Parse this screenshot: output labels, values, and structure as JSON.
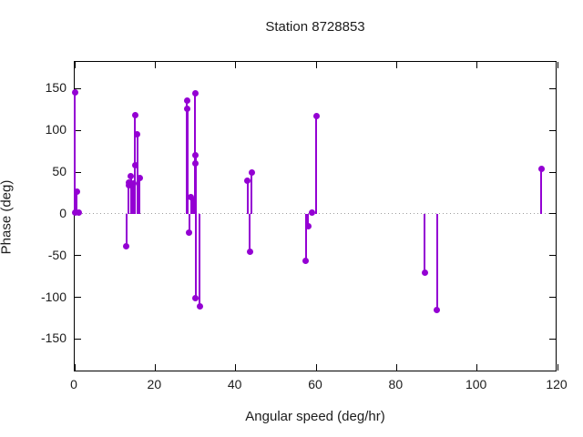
{
  "title": "Station 8728853",
  "axes": {
    "xlabel": "Angular speed (deg/hr)",
    "ylabel": "Phase (deg)",
    "x_ticks": [
      0,
      20,
      40,
      60,
      80,
      100,
      120
    ],
    "y_ticks": [
      150,
      100,
      50,
      0,
      -50,
      -100,
      -150
    ]
  },
  "colors": {
    "series": "#9400D3",
    "zero_line": "#9e9e9e",
    "axis": "#000000",
    "background": "#ffffff"
  },
  "chart_data": {
    "type": "scatter",
    "style": "impulses-with-points",
    "title": "Station 8728853",
    "xlabel": "Angular speed (deg/hr)",
    "ylabel": "Phase (deg)",
    "series_color": "#9400D3",
    "xlim": [
      0,
      120
    ],
    "ylim": [
      -190,
      182
    ],
    "x_ticks": [
      0,
      20,
      40,
      60,
      80,
      100,
      120
    ],
    "y_ticks": [
      150,
      100,
      50,
      0,
      -50,
      -100,
      -150
    ],
    "grid": "dotted-zero-line-only",
    "legend": "none",
    "points": [
      [
        0.04,
        146
      ],
      [
        0.08,
        1
      ],
      [
        0.54,
        27
      ],
      [
        1.02,
        1
      ],
      [
        12.85,
        -39
      ],
      [
        13.4,
        38
      ],
      [
        13.47,
        34
      ],
      [
        13.94,
        45
      ],
      [
        14.5,
        36
      ],
      [
        14.96,
        58
      ],
      [
        15.04,
        118
      ],
      [
        15.59,
        95
      ],
      [
        16.14,
        43
      ],
      [
        27.9,
        136
      ],
      [
        27.97,
        126
      ],
      [
        28.44,
        -22
      ],
      [
        28.98,
        20
      ],
      [
        29.46,
        16
      ],
      [
        29.53,
        12
      ],
      [
        29.96,
        144
      ],
      [
        30.0,
        70
      ],
      [
        30.04,
        60
      ],
      [
        30.08,
        -101
      ],
      [
        31.02,
        -111
      ],
      [
        42.93,
        40
      ],
      [
        43.48,
        -45
      ],
      [
        44.03,
        50
      ],
      [
        57.42,
        -56
      ],
      [
        57.97,
        -15
      ],
      [
        58.98,
        2
      ],
      [
        60.0,
        117
      ],
      [
        86.95,
        -70
      ],
      [
        90.0,
        -115
      ],
      [
        115.94,
        54
      ]
    ]
  }
}
